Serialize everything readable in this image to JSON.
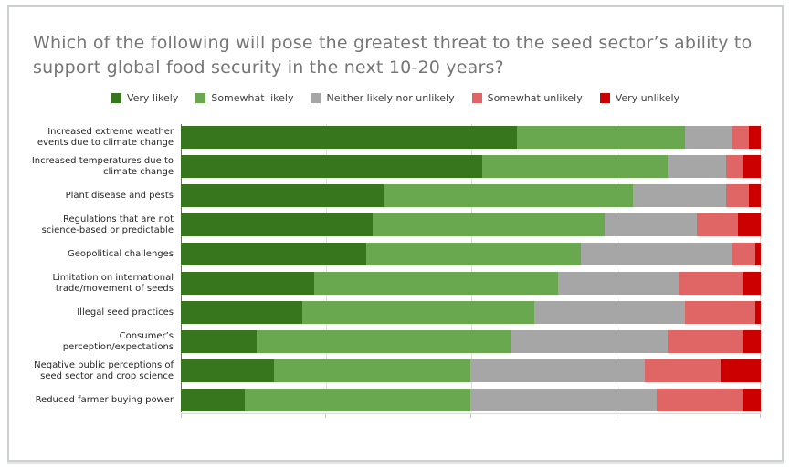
{
  "chart_data": {
    "type": "bar",
    "orientation": "horizontal",
    "stacked": true,
    "unit": "percent",
    "title": "Which of the following will pose the greatest threat to the seed sector’s ability to support global food security in the next 10-20 years?",
    "xlabel": "",
    "ylabel": "",
    "xlim": [
      0,
      100
    ],
    "gridlines_percent": [
      25,
      50,
      75,
      100
    ],
    "axis_ticks_percent": [
      0,
      25,
      50,
      75,
      100
    ],
    "grid": true,
    "legend_position": "top",
    "title_color": "#767676",
    "categories": [
      "Increased extreme weather\nevents due to climate change",
      "Increased temperatures due to\nclimate change",
      "Plant disease and pests",
      "Regulations that are not\nscience-based or predictable",
      "Geopolitical challenges",
      "Limitation on international\ntrade/movement of seeds",
      "Illegal seed practices",
      "Consumer’s\nperception/expectations",
      "Negative public perceptions of\nseed sector and crop science",
      "Reduced farmer buying power"
    ],
    "series": [
      {
        "name": "Very likely",
        "color": "#38761d",
        "values": [
          58,
          52,
          35,
          33,
          32,
          23,
          21,
          13,
          16,
          11
        ]
      },
      {
        "name": "Somewhat likely",
        "color": "#6aa84f",
        "values": [
          29,
          32,
          43,
          40,
          37,
          42,
          40,
          44,
          34,
          39
        ]
      },
      {
        "name": "Neither likely nor unlikely",
        "color": "#a6a6a6",
        "values": [
          8,
          10,
          16,
          16,
          26,
          21,
          26,
          27,
          30,
          32
        ]
      },
      {
        "name": "Somewhat unlikely",
        "color": "#e06666",
        "values": [
          3,
          3,
          4,
          7,
          4,
          11,
          12,
          13,
          13,
          15
        ]
      },
      {
        "name": "Very unlikely",
        "color": "#cc0000",
        "values": [
          2,
          3,
          2,
          4,
          1,
          3,
          1,
          3,
          7,
          3
        ]
      }
    ]
  }
}
